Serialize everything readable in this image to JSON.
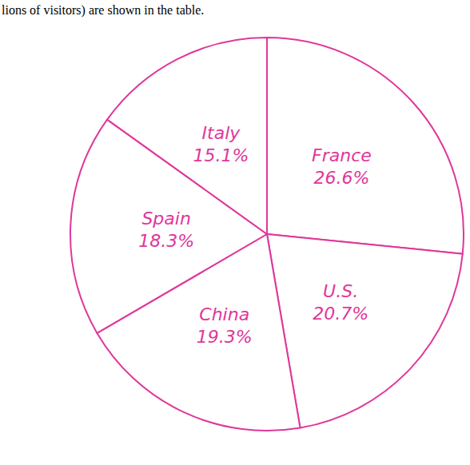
{
  "chart_data": {
    "type": "pie",
    "annotations": [
      "lions of visitors) are shown in the table."
    ],
    "categories": [
      "France",
      "U.S.",
      "China",
      "Spain",
      "Italy"
    ],
    "values": [
      26.6,
      20.7,
      19.3,
      18.3,
      15.1
    ],
    "value_labels": [
      "26.6%",
      "20.7%",
      "19.3%",
      "18.3%",
      "15.1%"
    ],
    "color": "#e0379a",
    "data_labels": true
  }
}
